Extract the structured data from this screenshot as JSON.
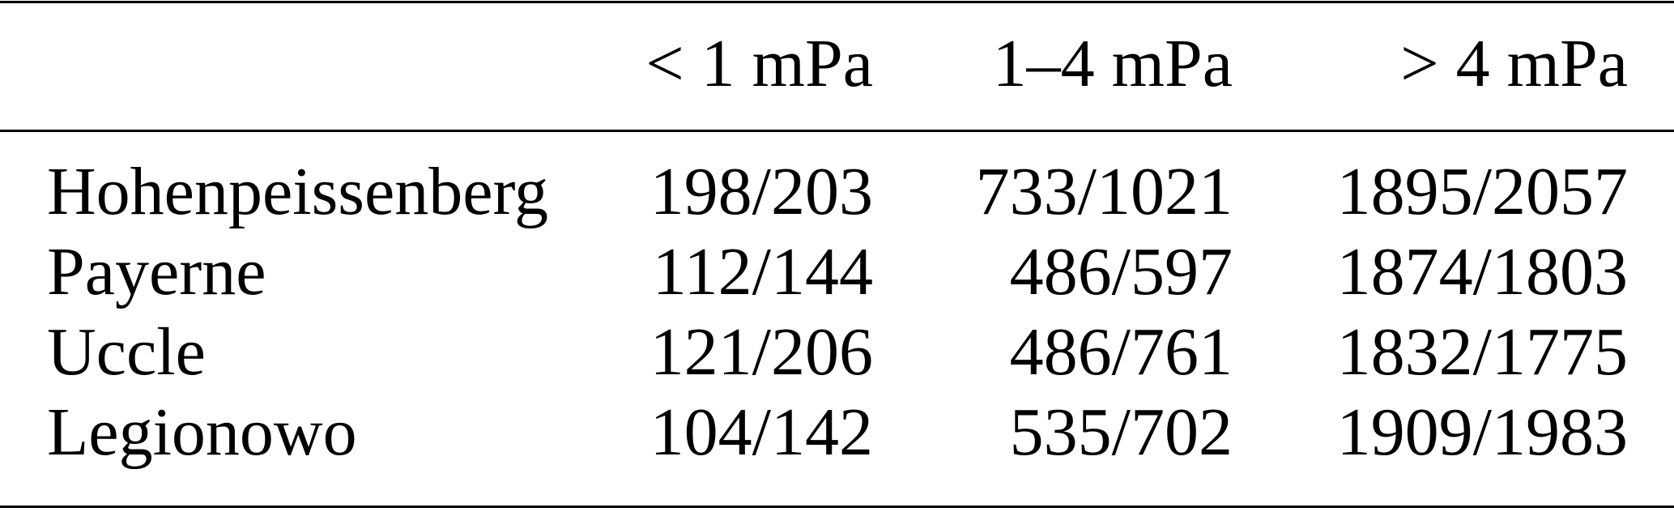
{
  "table": {
    "headers": [
      "",
      "< 1 mPa",
      "1–4 mPa",
      "> 4 mPa"
    ],
    "rows": [
      {
        "station": "Hohenpeissenberg",
        "values": [
          "198/203",
          "733/1021",
          "1895/2057"
        ]
      },
      {
        "station": "Payerne",
        "values": [
          "112/144",
          "486/597",
          "1874/1803"
        ]
      },
      {
        "station": "Uccle",
        "values": [
          "121/206",
          "486/761",
          "1832/1775"
        ]
      },
      {
        "station": "Legionowo",
        "values": [
          "104/142",
          "535/702",
          "1909/1983"
        ]
      }
    ]
  }
}
